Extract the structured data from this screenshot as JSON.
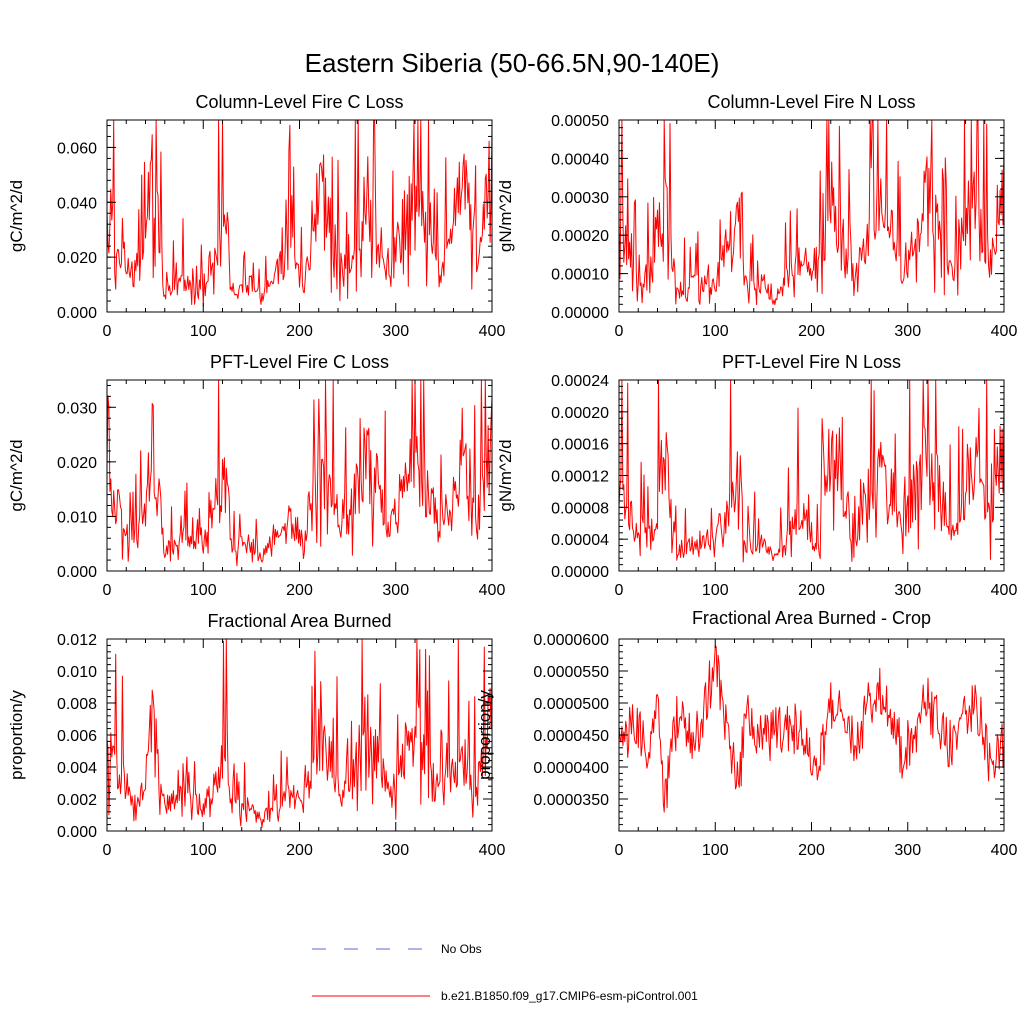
{
  "figure": {
    "title": "Eastern Siberia (50-66.5N,90-140E)"
  },
  "legend": [
    {
      "label": "No Obs",
      "color": "#5a6bd0",
      "style": "dashed"
    },
    {
      "label": "b.e21.B1850.f09_g17.CMIP6-esm-piControl.001",
      "color": "#ff0000",
      "style": "solid"
    }
  ],
  "chart_data": [
    {
      "type": "line",
      "title": "Column-Level Fire C Loss",
      "xlabel": "",
      "ylabel": "gC/m^2/d",
      "xlim": [
        0,
        400
      ],
      "ylim": [
        0,
        0.07
      ],
      "xticks": [
        0,
        100,
        200,
        300,
        400
      ],
      "xtick_labels": [
        "0",
        "100",
        "200",
        "300",
        "400"
      ],
      "yticks": [
        0,
        0.02,
        0.04,
        0.06
      ],
      "ytick_labels": [
        "0.000",
        "0.020",
        "0.040",
        "0.060"
      ],
      "grid": false,
      "series": [
        {
          "name": "b.e21.B1850.f09_g17.CMIP6-esm-piControl.001",
          "color": "#ff0000",
          "x": [
            0,
            15,
            30,
            40,
            47,
            60,
            80,
            100,
            125,
            130,
            150,
            160,
            190,
            205,
            220,
            245,
            270,
            295,
            320,
            345,
            370,
            385,
            400
          ],
          "values": [
            0.052,
            0.026,
            0.018,
            0.035,
            0.069,
            0.01,
            0.016,
            0.014,
            0.045,
            0.012,
            0.015,
            0.006,
            0.03,
            0.012,
            0.064,
            0.018,
            0.058,
            0.02,
            0.06,
            0.02,
            0.062,
            0.025,
            0.068
          ]
        }
      ]
    },
    {
      "type": "line",
      "title": "Column-Level Fire N Loss",
      "xlabel": "",
      "ylabel": "gN/m^2/d",
      "xlim": [
        0,
        400
      ],
      "ylim": [
        0,
        0.0005
      ],
      "xticks": [
        0,
        100,
        200,
        300,
        400
      ],
      "xtick_labels": [
        "0",
        "100",
        "200",
        "300",
        "400"
      ],
      "yticks": [
        0,
        0.0001,
        0.0002,
        0.0003,
        0.0004,
        0.0005
      ],
      "ytick_labels": [
        "0.00000",
        "0.00010",
        "0.00020",
        "0.00030",
        "0.00040",
        "0.00050"
      ],
      "grid": false,
      "series": [
        {
          "name": "b.e21.B1850.f09_g17.CMIP6-esm-piControl.001",
          "color": "#ff0000",
          "x": [
            0,
            15,
            30,
            40,
            47,
            60,
            80,
            100,
            125,
            130,
            150,
            160,
            190,
            205,
            220,
            245,
            270,
            295,
            320,
            345,
            370,
            385,
            400
          ],
          "values": [
            0.00033,
            0.00018,
            0.00012,
            0.00022,
            0.00044,
            7e-05,
            0.00011,
            0.0001,
            0.00034,
            9e-05,
            0.0001,
            4e-05,
            0.0002,
            9e-05,
            0.00042,
            0.00012,
            0.0004,
            0.00014,
            0.00042,
            0.00014,
            0.00043,
            0.00017,
            0.00046
          ]
        }
      ]
    },
    {
      "type": "line",
      "title": "PFT-Level Fire C Loss",
      "xlabel": "",
      "ylabel": "gC/m^2/d",
      "xlim": [
        0,
        400
      ],
      "ylim": [
        0,
        0.035
      ],
      "xticks": [
        0,
        100,
        200,
        300,
        400
      ],
      "xtick_labels": [
        "0",
        "100",
        "200",
        "300",
        "400"
      ],
      "yticks": [
        0,
        0.01,
        0.02,
        0.03
      ],
      "ytick_labels": [
        "0.000",
        "0.010",
        "0.020",
        "0.030"
      ],
      "grid": false,
      "series": [
        {
          "name": "b.e21.B1850.f09_g17.CMIP6-esm-piControl.001",
          "color": "#ff0000",
          "x": [
            0,
            15,
            30,
            40,
            47,
            60,
            80,
            100,
            125,
            130,
            150,
            160,
            190,
            205,
            220,
            245,
            270,
            295,
            320,
            345,
            370,
            385,
            400
          ],
          "values": [
            0.024,
            0.012,
            0.008,
            0.016,
            0.032,
            0.005,
            0.008,
            0.007,
            0.025,
            0.006,
            0.007,
            0.003,
            0.014,
            0.006,
            0.03,
            0.009,
            0.028,
            0.01,
            0.029,
            0.01,
            0.03,
            0.012,
            0.032
          ]
        }
      ]
    },
    {
      "type": "line",
      "title": "PFT-Level Fire N Loss",
      "xlabel": "",
      "ylabel": "gN/m^2/d",
      "xlim": [
        0,
        400
      ],
      "ylim": [
        0,
        0.00024
      ],
      "xticks": [
        0,
        100,
        200,
        300,
        400
      ],
      "xtick_labels": [
        "0",
        "100",
        "200",
        "300",
        "400"
      ],
      "yticks": [
        0,
        4e-05,
        8e-05,
        0.00012,
        0.00016,
        0.0002,
        0.00024
      ],
      "ytick_labels": [
        "0.00000",
        "0.00004",
        "0.00008",
        "0.00012",
        "0.00016",
        "0.00020",
        "0.00024"
      ],
      "grid": false,
      "series": [
        {
          "name": "b.e21.B1850.f09_g17.CMIP6-esm-piControl.001",
          "color": "#ff0000",
          "x": [
            0,
            15,
            30,
            40,
            47,
            60,
            80,
            100,
            125,
            130,
            150,
            160,
            190,
            205,
            220,
            245,
            270,
            295,
            320,
            345,
            370,
            385,
            400
          ],
          "values": [
            0.00015,
            8e-05,
            6e-05,
            0.0001,
            0.00021,
            3e-05,
            5e-05,
            5e-05,
            0.00017,
            4e-05,
            5e-05,
            2e-05,
            0.0001,
            4e-05,
            0.0002,
            6e-05,
            0.00019,
            7e-05,
            0.0002,
            7e-05,
            0.0002,
            8e-05,
            0.00021
          ]
        }
      ]
    },
    {
      "type": "line",
      "title": "Fractional Area Burned",
      "xlabel": "",
      "ylabel": "proportion/y",
      "xlim": [
        0,
        400
      ],
      "ylim": [
        0,
        0.012
      ],
      "xticks": [
        0,
        100,
        200,
        300,
        400
      ],
      "xtick_labels": [
        "0",
        "100",
        "200",
        "300",
        "400"
      ],
      "yticks": [
        0,
        0.002,
        0.004,
        0.006,
        0.008,
        0.01,
        0.012
      ],
      "ytick_labels": [
        "0.000",
        "0.002",
        "0.004",
        "0.006",
        "0.008",
        "0.010",
        "0.012"
      ],
      "grid": false,
      "series": [
        {
          "name": "b.e21.B1850.f09_g17.CMIP6-esm-piControl.001",
          "color": "#ff0000",
          "x": [
            0,
            15,
            30,
            40,
            47,
            60,
            80,
            100,
            125,
            130,
            150,
            160,
            190,
            205,
            220,
            245,
            270,
            295,
            320,
            345,
            370,
            385,
            400
          ],
          "values": [
            0.0065,
            0.0045,
            0.002,
            0.005,
            0.009,
            0.002,
            0.003,
            0.002,
            0.0063,
            0.002,
            0.002,
            0.001,
            0.003,
            0.002,
            0.008,
            0.003,
            0.0085,
            0.003,
            0.0085,
            0.003,
            0.006,
            0.004,
            0.01
          ]
        }
      ]
    },
    {
      "type": "line",
      "title": "Fractional Area Burned - Crop",
      "xlabel": "",
      "ylabel": "proportion/y",
      "xlim": [
        0,
        400
      ],
      "ylim": [
        3e-05,
        6e-05
      ],
      "xticks": [
        0,
        100,
        200,
        300,
        400
      ],
      "xtick_labels": [
        "0",
        "100",
        "200",
        "300",
        "400"
      ],
      "yticks": [
        3.5e-05,
        4e-05,
        4.5e-05,
        5e-05,
        5.5e-05,
        6e-05
      ],
      "ytick_labels": [
        "0.0000350",
        "0.0000400",
        "0.0000450",
        "0.0000500",
        "0.0000550",
        "0.0000600"
      ],
      "grid": false,
      "series": [
        {
          "name": "b.e21.B1850.f09_g17.CMIP6-esm-piControl.001",
          "color": "#ff0000",
          "x": [
            0,
            15,
            30,
            40,
            47,
            60,
            80,
            100,
            125,
            130,
            150,
            160,
            190,
            205,
            220,
            245,
            270,
            295,
            320,
            345,
            370,
            385,
            400
          ],
          "values": [
            4.4e-05,
            4.6e-05,
            4.3e-05,
            5e-05,
            3.5e-05,
            4.7e-05,
            4.4e-05,
            5.6e-05,
            3.6e-05,
            4.8e-05,
            4.4e-05,
            4.5e-05,
            4.6e-05,
            3.8e-05,
            5e-05,
            4.4e-05,
            5.3e-05,
            4.2e-05,
            5e-05,
            4.3e-05,
            5.1e-05,
            4.1e-05,
            4.4e-05
          ]
        }
      ]
    }
  ]
}
